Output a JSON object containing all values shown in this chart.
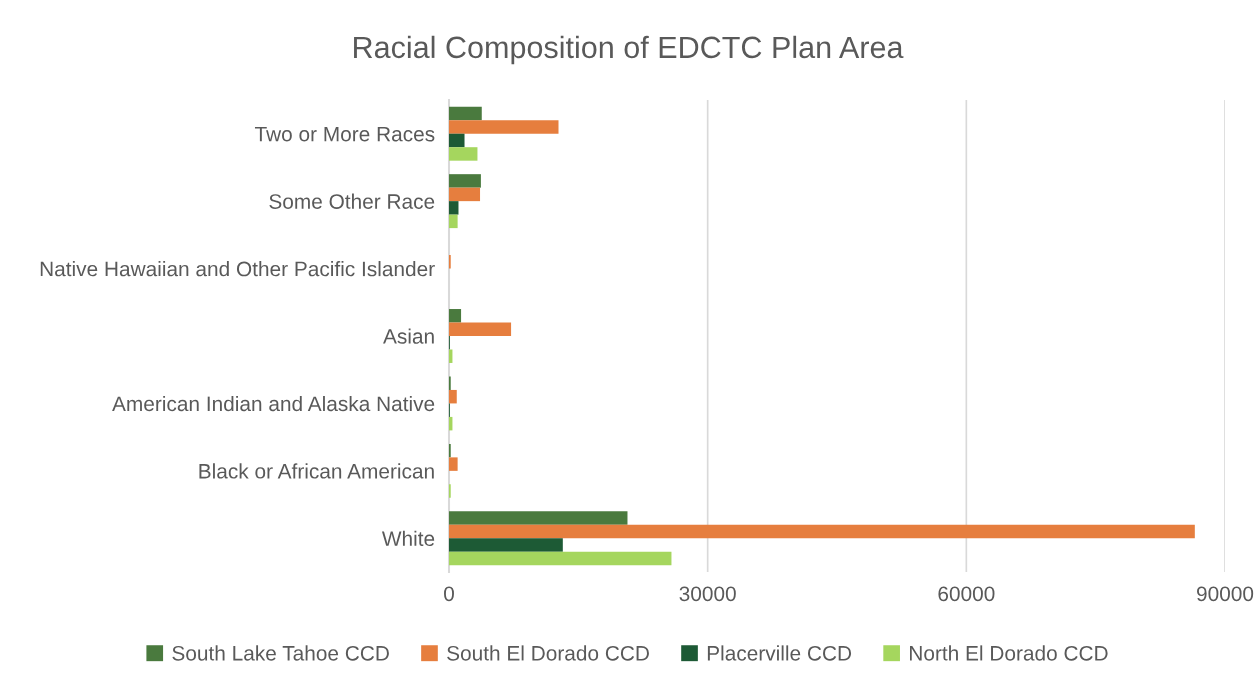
{
  "chart_data": {
    "type": "bar",
    "orientation": "horizontal",
    "title": "Racial Composition of EDCTC Plan Area",
    "categories": [
      "Two or More Races",
      "Some Other Race",
      "Native Hawaiian and Other Pacific Islander",
      "Asian",
      "American Indian and Alaska Native",
      "Black or African American",
      "White"
    ],
    "series": [
      {
        "name": "South Lake Tahoe CCD",
        "color": "#4a7a3e",
        "values": [
          3800,
          3700,
          null,
          1400,
          200,
          200,
          20700
        ]
      },
      {
        "name": "South El Dorado CCD",
        "color": "#e67e3e",
        "values": [
          12700,
          3600,
          200,
          7200,
          900,
          1000,
          86500
        ]
      },
      {
        "name": "Placerville CCD",
        "color": "#1d5a35",
        "values": [
          1800,
          1100,
          null,
          100,
          100,
          null,
          13200
        ]
      },
      {
        "name": "North El Dorado CCD",
        "color": "#a5d65e",
        "values": [
          3300,
          1000,
          null,
          400,
          400,
          200,
          25800
        ]
      }
    ],
    "xlim": [
      0,
      90000
    ],
    "xticks": [
      0,
      30000,
      60000,
      90000
    ],
    "grid": "x",
    "legend": "bottom"
  }
}
